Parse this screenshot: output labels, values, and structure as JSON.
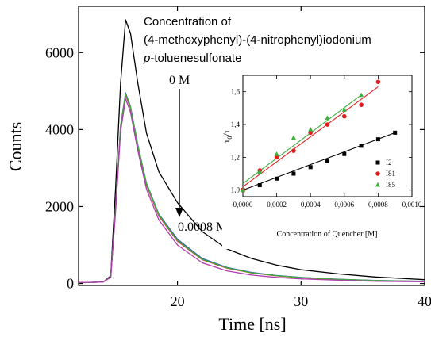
{
  "main_chart": {
    "type": "line",
    "xlabel": "Time [ns]",
    "ylabel": "Counts",
    "xlim": [
      12,
      40
    ],
    "ylim": [
      -50,
      7200
    ],
    "xticks": [
      20,
      30,
      40
    ],
    "yticks": [
      0,
      2000,
      4000,
      6000
    ],
    "annotation": {
      "line1": "Concentration of",
      "line2": "(4-methoxyphenyl)-(4-nitrophenyl)iodonium",
      "line3_italic": "p",
      "line3_rest": "-toluenesulfonate",
      "start": "0 M",
      "end": "0.0008 M"
    },
    "series": [
      {
        "color": "#000000",
        "points": [
          [
            12,
            30
          ],
          [
            13,
            30
          ],
          [
            14,
            40
          ],
          [
            14.6,
            200
          ],
          [
            15.0,
            2500
          ],
          [
            15.4,
            5200
          ],
          [
            15.8,
            6850
          ],
          [
            16.2,
            6500
          ],
          [
            16.8,
            5200
          ],
          [
            17.5,
            3900
          ],
          [
            18.5,
            2900
          ],
          [
            20,
            2100
          ],
          [
            22,
            1350
          ],
          [
            24,
            900
          ],
          [
            26,
            650
          ],
          [
            28,
            480
          ],
          [
            30,
            360
          ],
          [
            33,
            250
          ],
          [
            36,
            170
          ],
          [
            40,
            100
          ]
        ]
      },
      {
        "color": "#3a52c8",
        "points": [
          [
            12,
            30
          ],
          [
            13,
            30
          ],
          [
            14,
            40
          ],
          [
            14.6,
            180
          ],
          [
            15.0,
            2000
          ],
          [
            15.4,
            4100
          ],
          [
            15.8,
            4950
          ],
          [
            16.2,
            4600
          ],
          [
            16.8,
            3600
          ],
          [
            17.5,
            2600
          ],
          [
            18.5,
            1800
          ],
          [
            20,
            1150
          ],
          [
            22,
            650
          ],
          [
            24,
            420
          ],
          [
            26,
            290
          ],
          [
            28,
            210
          ],
          [
            30,
            160
          ],
          [
            33,
            110
          ],
          [
            36,
            80
          ],
          [
            40,
            60
          ]
        ]
      },
      {
        "color": "#e03030",
        "points": [
          [
            12,
            30
          ],
          [
            13,
            30
          ],
          [
            14,
            40
          ],
          [
            14.6,
            170
          ],
          [
            15.0,
            1950
          ],
          [
            15.4,
            4050
          ],
          [
            15.8,
            4900
          ],
          [
            16.2,
            4550
          ],
          [
            16.8,
            3550
          ],
          [
            17.5,
            2550
          ],
          [
            18.5,
            1750
          ],
          [
            20,
            1100
          ],
          [
            22,
            620
          ],
          [
            24,
            400
          ],
          [
            26,
            275
          ],
          [
            28,
            200
          ],
          [
            30,
            150
          ],
          [
            33,
            105
          ],
          [
            36,
            75
          ],
          [
            40,
            55
          ]
        ]
      },
      {
        "color": "#3bb03b",
        "points": [
          [
            12,
            30
          ],
          [
            13,
            30
          ],
          [
            14,
            40
          ],
          [
            14.6,
            170
          ],
          [
            15.0,
            1980
          ],
          [
            15.4,
            4080
          ],
          [
            15.8,
            4920
          ],
          [
            16.2,
            4580
          ],
          [
            16.8,
            3580
          ],
          [
            17.5,
            2580
          ],
          [
            18.5,
            1780
          ],
          [
            20,
            1120
          ],
          [
            22,
            630
          ],
          [
            24,
            410
          ],
          [
            26,
            280
          ],
          [
            28,
            205
          ],
          [
            30,
            155
          ],
          [
            33,
            108
          ],
          [
            36,
            78
          ],
          [
            40,
            58
          ]
        ]
      },
      {
        "color": "#b03ab0",
        "points": [
          [
            12,
            30
          ],
          [
            13,
            30
          ],
          [
            14,
            40
          ],
          [
            14.6,
            160
          ],
          [
            15.0,
            1900
          ],
          [
            15.4,
            3950
          ],
          [
            15.8,
            4800
          ],
          [
            16.2,
            4450
          ],
          [
            16.8,
            3450
          ],
          [
            17.5,
            2450
          ],
          [
            18.5,
            1650
          ],
          [
            20,
            1000
          ],
          [
            22,
            540
          ],
          [
            24,
            330
          ],
          [
            26,
            220
          ],
          [
            28,
            160
          ],
          [
            30,
            120
          ],
          [
            33,
            85
          ],
          [
            36,
            60
          ],
          [
            40,
            45
          ]
        ]
      }
    ]
  },
  "inset_chart": {
    "type": "scatter",
    "xlabel": "Concentration of Quencher [M]",
    "ylabel_main": "τ",
    "ylabel_sub": "0",
    "ylabel_rest": "/τ",
    "xlim": [
      0,
      0.001
    ],
    "ylim": [
      0.96,
      1.7
    ],
    "xticks": [
      "0,0000",
      "0,0002",
      "0,0004",
      "0,0006",
      "0,0008",
      "0,0010"
    ],
    "yticks": [
      "1,0",
      "1,2",
      "1,4",
      "1,6"
    ],
    "series": [
      {
        "name": "I2",
        "color": "#000000",
        "marker": "square",
        "x": [
          0,
          0.0001,
          0.0002,
          0.0003,
          0.0004,
          0.0005,
          0.0006,
          0.0007,
          0.0008,
          0.0009
        ],
        "y": [
          1.0,
          1.03,
          1.07,
          1.1,
          1.14,
          1.18,
          1.22,
          1.27,
          1.31,
          1.35
        ],
        "fit": [
          [
            0,
            1.0
          ],
          [
            0.0009,
            1.35
          ]
        ]
      },
      {
        "name": "I81",
        "color": "#e02020",
        "marker": "circle",
        "x": [
          0,
          0.0001,
          0.0002,
          0.0003,
          0.0004,
          0.0005,
          0.0006,
          0.0007,
          0.0008
        ],
        "y": [
          1.0,
          1.12,
          1.2,
          1.24,
          1.35,
          1.4,
          1.45,
          1.52,
          1.66
        ],
        "fit": [
          [
            0,
            1.02
          ],
          [
            0.0008,
            1.63
          ]
        ]
      },
      {
        "name": "I85",
        "color": "#3cb03c",
        "marker": "triangle",
        "x": [
          0,
          0.0001,
          0.0002,
          0.0003,
          0.0004,
          0.0005,
          0.0006,
          0.0007
        ],
        "y": [
          1.0,
          1.11,
          1.22,
          1.32,
          1.37,
          1.44,
          1.49,
          1.58
        ],
        "fit": [
          [
            0,
            1.04
          ],
          [
            0.0007,
            1.58
          ]
        ]
      }
    ]
  }
}
